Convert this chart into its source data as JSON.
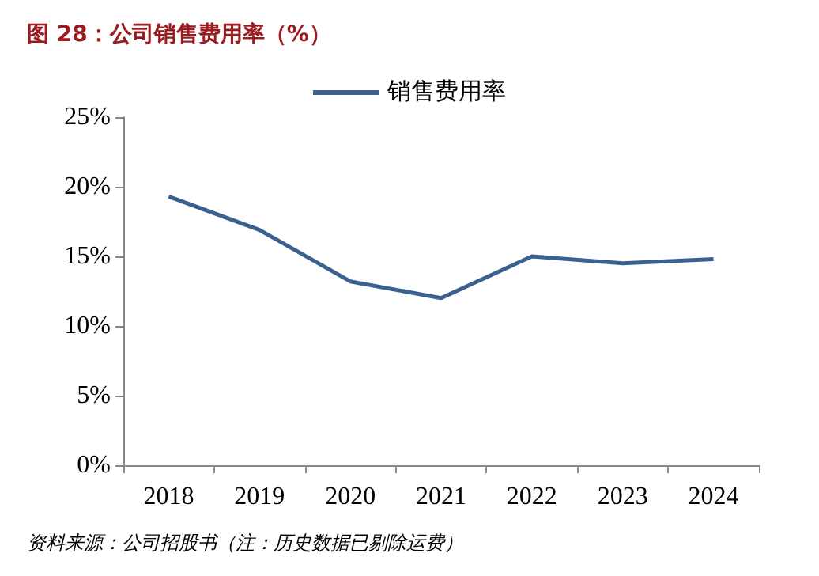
{
  "chart_data": {
    "type": "line",
    "title": "图 28：公司销售费用率（%）",
    "categories": [
      "2018",
      "2019",
      "2020",
      "2021",
      "2022",
      "2023",
      "2024"
    ],
    "series": [
      {
        "name": "销售费用率",
        "color": "#3a6190",
        "values": [
          19.3,
          16.9,
          13.2,
          12.0,
          15.0,
          14.5,
          14.8
        ]
      }
    ],
    "ylim": [
      0,
      25
    ],
    "yticks": [
      {
        "value": 0,
        "label": "0%"
      },
      {
        "value": 5,
        "label": "5%"
      },
      {
        "value": 10,
        "label": "10%"
      },
      {
        "value": 15,
        "label": "15%"
      },
      {
        "value": 20,
        "label": "20%"
      },
      {
        "value": 25,
        "label": "25%"
      }
    ],
    "grid": false,
    "legend": "top",
    "marker": "none",
    "line_style": "solid",
    "annotations": [
      "资料来源：公司招股书（注：历史数据已剔除运费）"
    ]
  }
}
